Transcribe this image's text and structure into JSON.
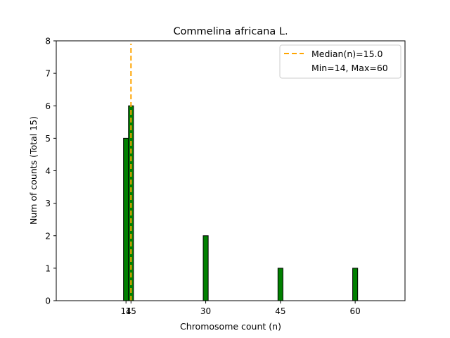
{
  "chart_data": {
    "type": "bar",
    "title": "Commelina africana L.",
    "xlabel": "Chromosome count (n)",
    "ylabel": "Num of counts     (Total 15)",
    "xlim": [
      0,
      70
    ],
    "ylim": [
      0,
      8
    ],
    "xticks": [
      14,
      15,
      30,
      45,
      60
    ],
    "yticks": [
      0,
      1,
      2,
      3,
      4,
      5,
      6,
      7,
      8
    ],
    "bars": [
      {
        "x": 14,
        "value": 5
      },
      {
        "x": 15,
        "value": 6
      },
      {
        "x": 30,
        "value": 2
      },
      {
        "x": 45,
        "value": 1
      },
      {
        "x": 60,
        "value": 1
      }
    ],
    "bar_color": "#008000",
    "median": 15.0,
    "median_color": "#FFA500",
    "legend": {
      "placement": "top-right",
      "entries": [
        "Median(n)=15.0",
        "Min=14, Max=60"
      ]
    },
    "grid": false
  }
}
